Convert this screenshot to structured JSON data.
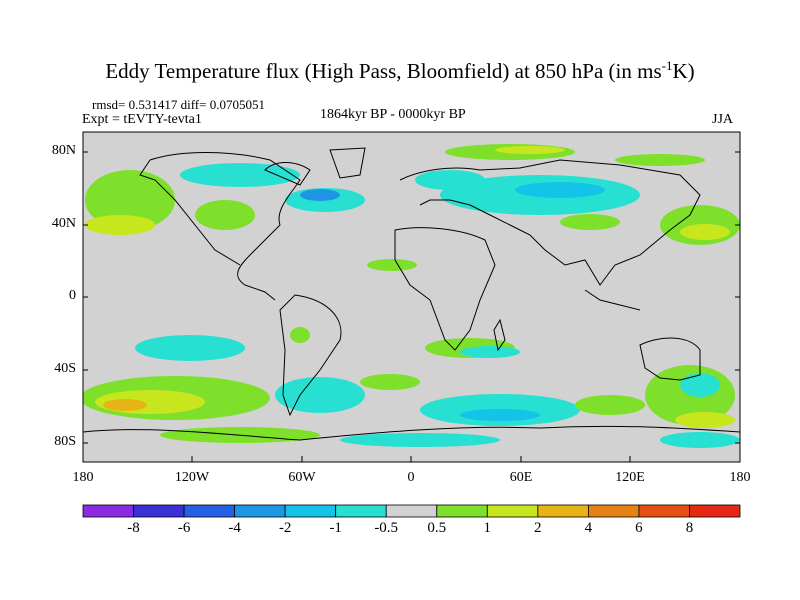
{
  "title": {
    "main": "Eddy Temperature flux (High Pass, Bloomfield) at 850 hPa (in ms",
    "sup": "-1",
    "end": "K)"
  },
  "header": {
    "rmsd_line": "rmsd= 0.531417 diff= 0.0705051",
    "expt": "Expt = tEVTY-tevta1",
    "period": "1864kyr BP - 0000kyr BP",
    "season": "JJA"
  },
  "axes": {
    "lat_ticks": [
      "80N",
      "40N",
      "0",
      "40S",
      "80S"
    ],
    "lon_ticks": [
      "180",
      "120W",
      "60W",
      "0",
      "60E",
      "120E",
      "180"
    ]
  },
  "colorbar": {
    "labels": [
      "-8",
      "-6",
      "-4",
      "-2",
      "-1",
      "-0.5",
      "0.5",
      "1",
      "2",
      "4",
      "6",
      "8"
    ],
    "colors": [
      "#8a2be2",
      "#3b2fd6",
      "#2460e6",
      "#1e96e6",
      "#14c3e8",
      "#28e0d2",
      "#d2d2d2",
      "#7ee02a",
      "#c8e61e",
      "#e6b414",
      "#e68214",
      "#e65014",
      "#e62814"
    ]
  }
}
